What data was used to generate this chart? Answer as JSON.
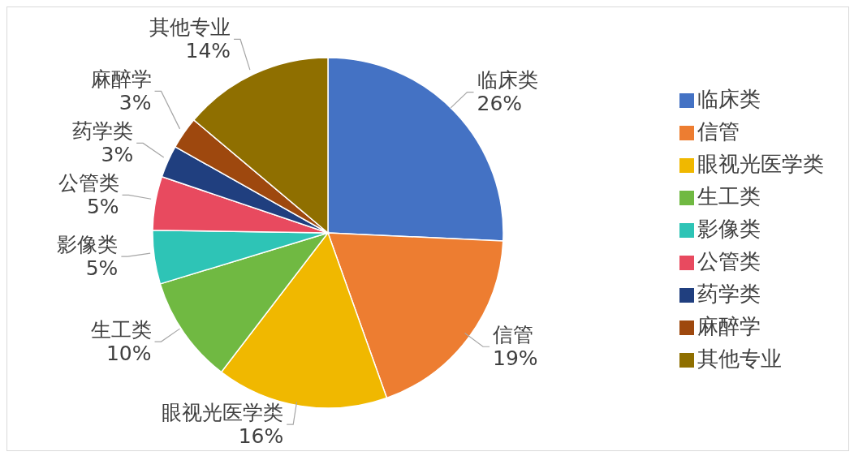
{
  "chart_data": {
    "type": "pie",
    "categories": [
      "临床类",
      "信管",
      "眼视光医学类",
      "生工类",
      "影像类",
      "公管类",
      "药学类",
      "麻醉学",
      "其他专业"
    ],
    "values": [
      26,
      19,
      16,
      10,
      5,
      5,
      3,
      3,
      14
    ],
    "value_labels": [
      "26%",
      "19%",
      "16%",
      "10%",
      "5%",
      "5%",
      "3%",
      "3%",
      "14%"
    ],
    "colors": [
      "#4472c4",
      "#ed7d31",
      "#f0b800",
      "#70b942",
      "#2ec4b6",
      "#e84a5f",
      "#203f7f",
      "#9e480e",
      "#8f6f00"
    ],
    "legend": "right"
  }
}
